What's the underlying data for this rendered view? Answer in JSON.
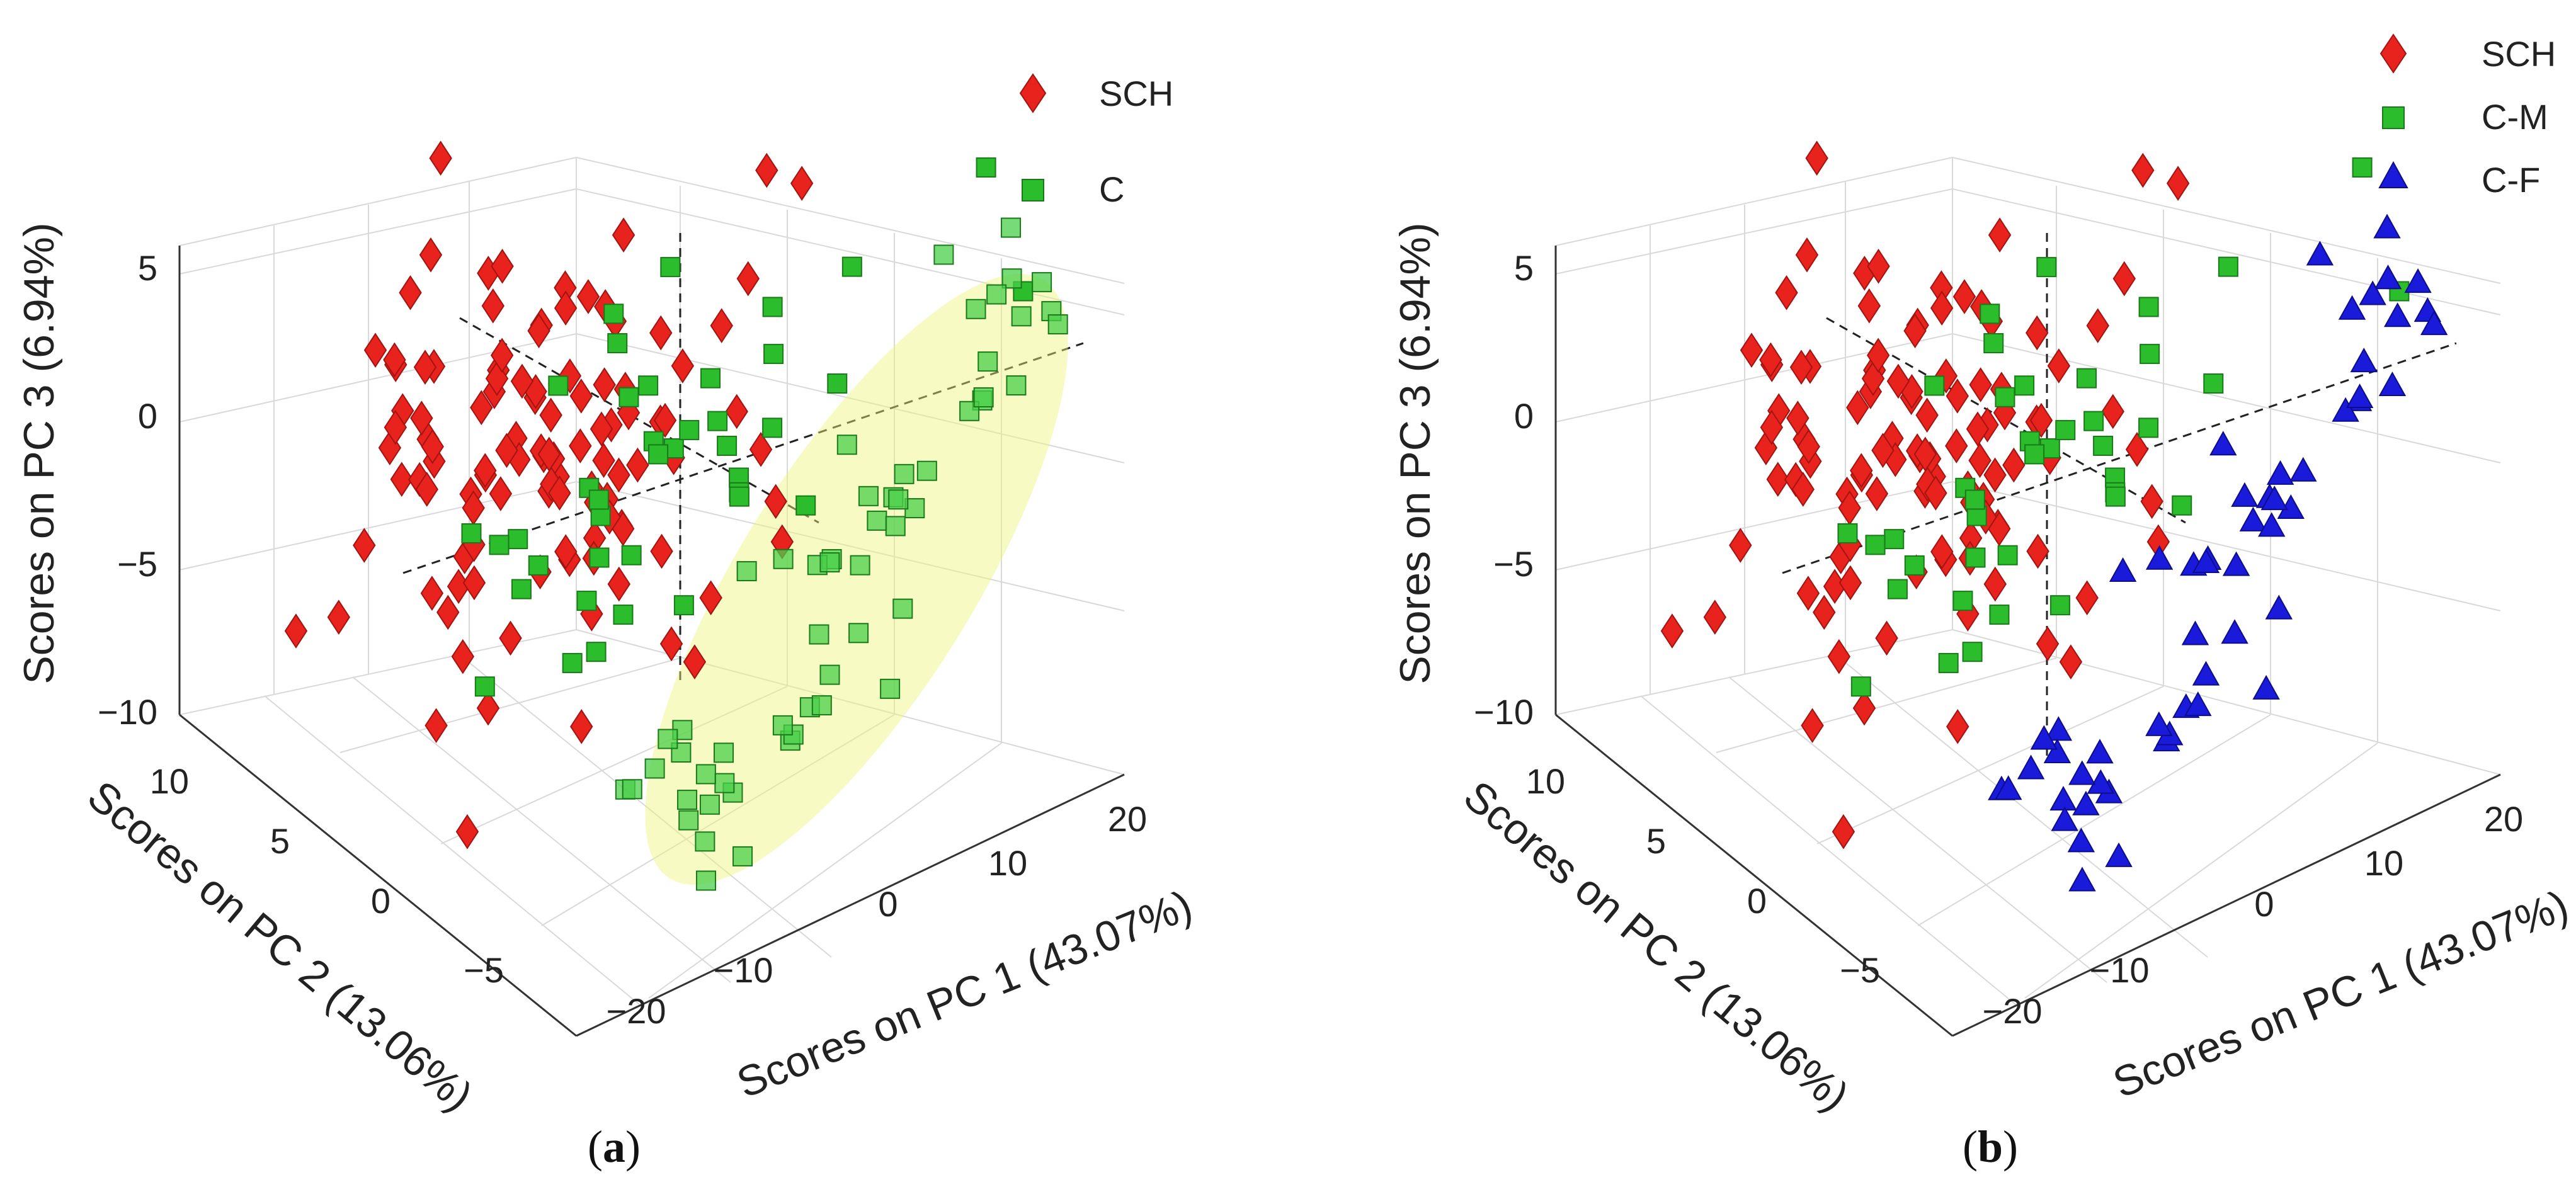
{
  "figure": {
    "panel_labels": [
      {
        "open": "(",
        "letter": "a",
        "close": ")"
      },
      {
        "open": "(",
        "letter": "b",
        "close": ")"
      }
    ]
  },
  "chart_data": [
    {
      "type": "scatter3d",
      "title": "",
      "xlabel": "Scores on PC 1 (43.07%)",
      "ylabel": "Scores on PC 2 (13.06%)",
      "zlabel": "Scores on PC 3 (6.94%)",
      "xlim": [
        -25,
        25
      ],
      "ylim": [
        -8,
        13
      ],
      "zlim": [
        -11,
        8
      ],
      "xticks": [
        "−20",
        "−10",
        "0",
        "10",
        "20"
      ],
      "yticks": [
        "−5",
        "0",
        "5",
        "10"
      ],
      "zticks": [
        "−10",
        "−5",
        "0",
        "5"
      ],
      "grid": true,
      "legend": [
        {
          "label": "SCH",
          "color": "#e8231e",
          "marker": "diamond"
        },
        {
          "label": "C",
          "color": "#2bbd2b",
          "marker": "square"
        }
      ],
      "annotations": [
        "dashed principal axes through origin",
        "confidence ellipse around C cluster"
      ]
    },
    {
      "type": "scatter3d",
      "title": "",
      "xlabel": "Scores on PC 1 (43.07%)",
      "ylabel": "Scores on PC 2 (13.06%)",
      "zlabel": "Scores on PC 3 (6.94%)",
      "xlim": [
        -25,
        25
      ],
      "ylim": [
        -8,
        13
      ],
      "zlim": [
        -11,
        8
      ],
      "xticks": [
        "−20",
        "−10",
        "0",
        "10",
        "20"
      ],
      "yticks": [
        "−5",
        "0",
        "5",
        "10"
      ],
      "zticks": [
        "−10",
        "−5",
        "0",
        "5"
      ],
      "grid": true,
      "legend": [
        {
          "label": "SCH",
          "color": "#e8231e",
          "marker": "diamond"
        },
        {
          "label": "C-M",
          "color": "#2bbd2b",
          "marker": "square"
        },
        {
          "label": "C-F",
          "color": "#1a1adb",
          "marker": "triangle"
        }
      ],
      "annotations": [
        "dashed principal axes through origin"
      ]
    }
  ]
}
